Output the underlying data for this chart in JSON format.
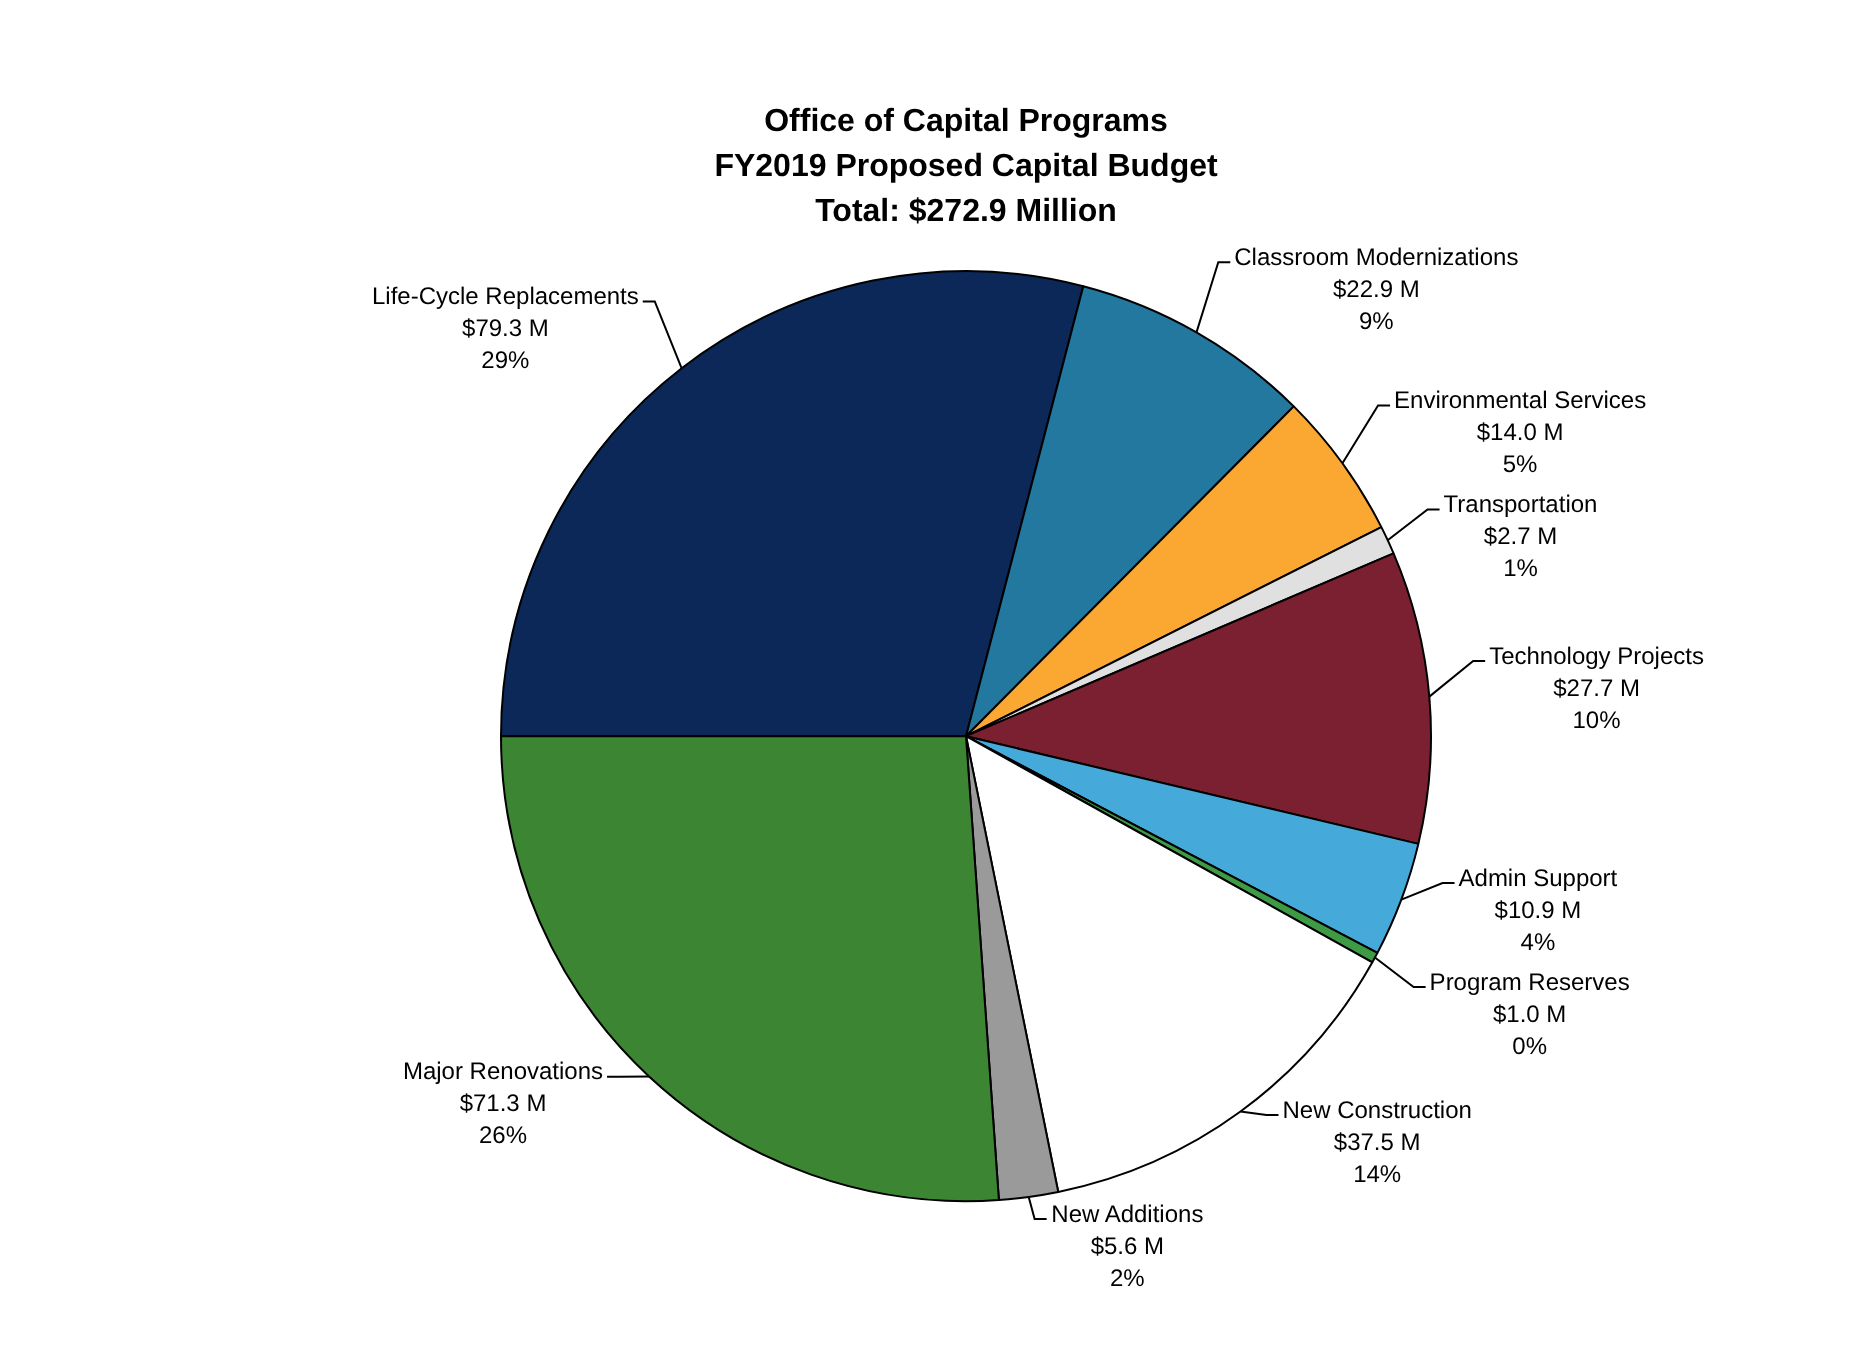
{
  "chart_data": {
    "type": "pie",
    "title": "Office of Capital Programs\nFY2019 Proposed Capital Budget\nTotal: $272.9 Million",
    "categories": [
      "Life-Cycle Replacements",
      "Classroom Modernizations",
      "Environmental Services",
      "Transportation",
      "Technology Projects",
      "Admin Support",
      "Program Reserves",
      "New Construction",
      "New Additions",
      "Major Renovations"
    ],
    "values": [
      79.3,
      22.9,
      14.0,
      2.7,
      27.7,
      10.9,
      1.0,
      37.5,
      5.6,
      71.3
    ],
    "value_labels": [
      "$79.3 M\n29%",
      "$22.9 M\n9%",
      "$14.0 M\n5%",
      "$2.7 M\n1%",
      "$27.7 M\n10%",
      "$10.9 M\n4%",
      "$1.0 M\n0%",
      "$37.5 M\n14%",
      "$5.6 M\n2%",
      "$71.3 M\n26%"
    ],
    "colors": [
      "#0b2858",
      "#22789f",
      "#fba832",
      "#e0e0e0",
      "#7b2030",
      "#45a9da",
      "#3e9a44",
      "#ffffff",
      "#9a9a9a",
      "#3c8533"
    ],
    "legend": false
  }
}
